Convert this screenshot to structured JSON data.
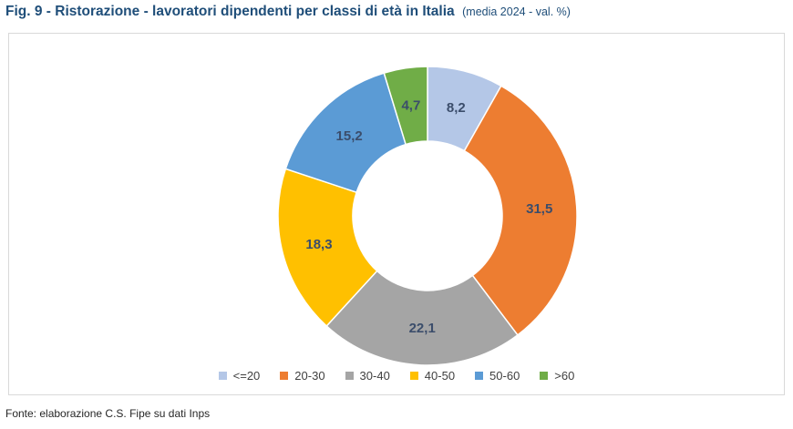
{
  "title": {
    "main": "Fig. 9 - Ristorazione - lavoratori dipendenti per classi di età in Italia",
    "sub": "(media 2024 - val. %)"
  },
  "source": "Fonte: elaborazione C.S. Fipe su dati Inps",
  "chart_data": {
    "type": "pie",
    "subtype": "doughnut",
    "categories": [
      "<=20",
      "20-30",
      "30-40",
      "40-50",
      "50-60",
      ">60"
    ],
    "values": [
      8.2,
      31.5,
      22.1,
      18.3,
      15.2,
      4.7
    ],
    "value_labels": [
      "8,2",
      "31,5",
      "22,1",
      "18,3",
      "15,2",
      "4,7"
    ],
    "colors": [
      "#b4c7e7",
      "#ed7d31",
      "#a5a5a5",
      "#ffc000",
      "#5b9bd5",
      "#70ad47"
    ],
    "legend_position": "bottom",
    "start": "top, clockwise"
  }
}
